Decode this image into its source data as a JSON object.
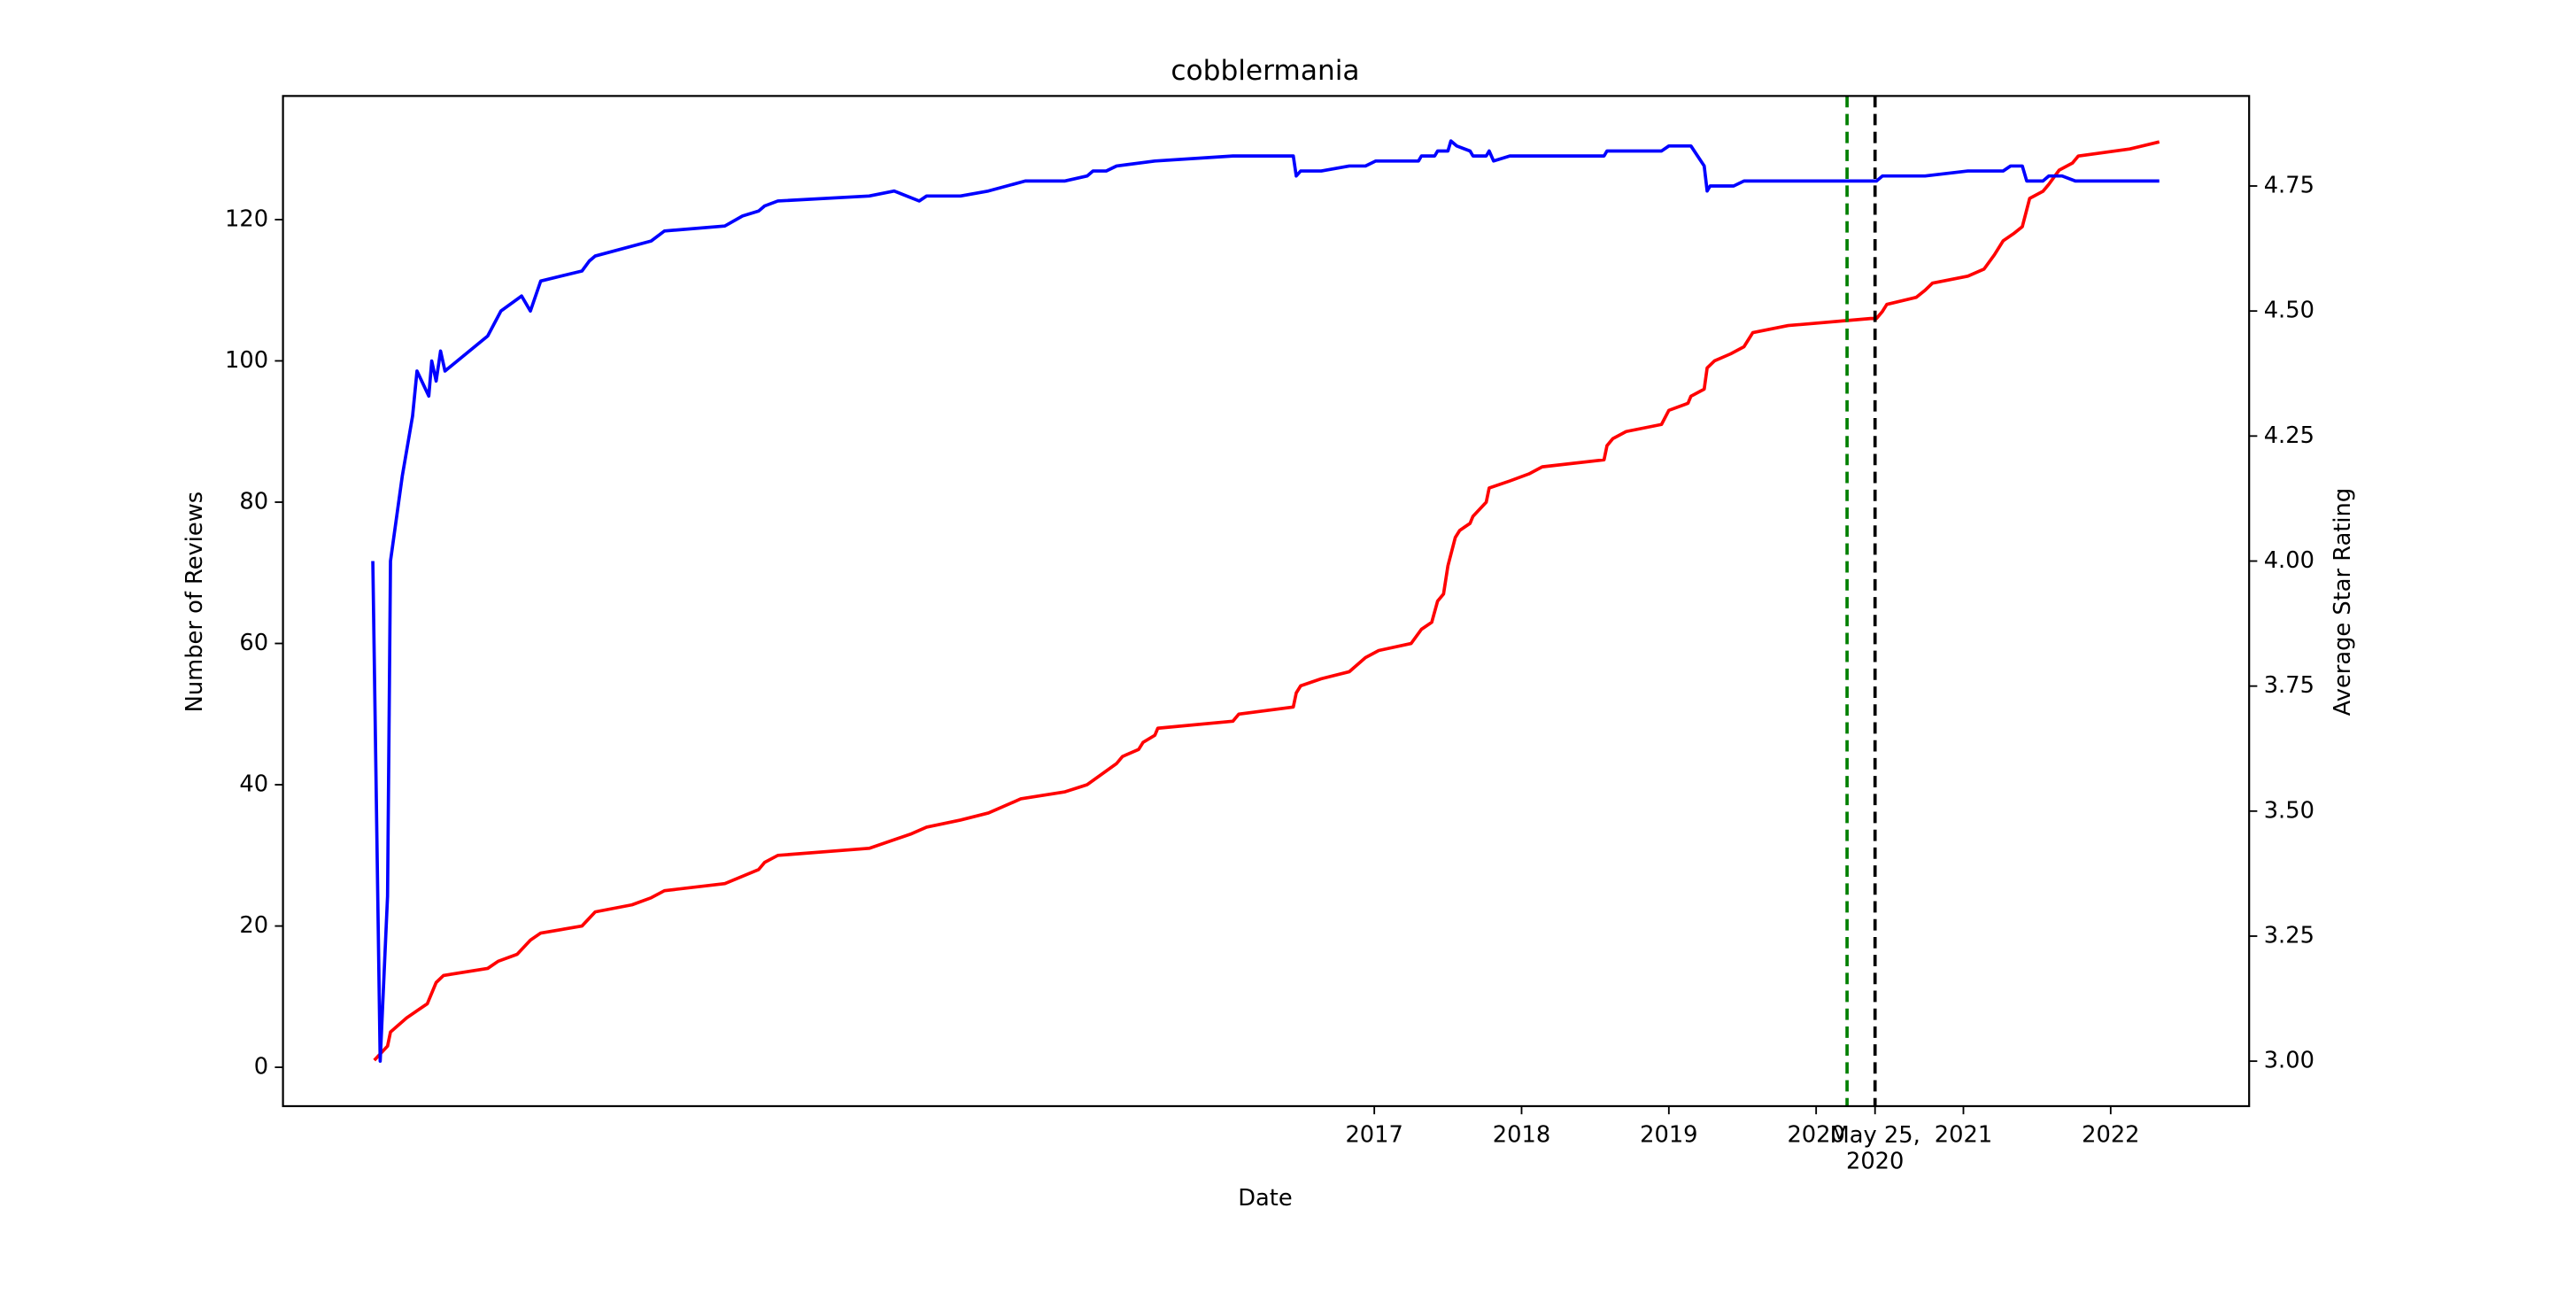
{
  "chart_data": {
    "type": "line",
    "title": "cobblermania",
    "xlabel": "Date",
    "ylabel": "Number of Reviews",
    "y2label": "Average Star Rating",
    "xlim": [
      2009.59,
      2022.94
    ],
    "ylim": [
      -5.5,
      137.5
    ],
    "y2lim": [
      2.91,
      4.93
    ],
    "xticks": [
      2017,
      2018,
      2019,
      2020,
      {
        "value": 2020.4,
        "label": "May 25,\n2020"
      },
      2021,
      2022
    ],
    "yticks": [
      0,
      20,
      40,
      60,
      80,
      100,
      120
    ],
    "y2ticks": [
      {
        "value": 3,
        "label": "3.00"
      },
      3.25,
      {
        "value": 3.5,
        "label": "3.50"
      },
      3.75,
      {
        "value": 4,
        "label": "4.00"
      },
      4.25,
      {
        "value": 4.5,
        "label": "4.50"
      },
      4.75
    ],
    "ylabel_color": "red",
    "y2label_color": "blue",
    "vlines": [
      {
        "x": 2020.21,
        "color": "green"
      },
      {
        "x": 2020.4,
        "color": "black"
      }
    ],
    "series": [
      {
        "name": "Number of Reviews",
        "color": "red",
        "axis": "y",
        "x": [
          2010.21,
          2010.3,
          2010.32,
          2010.43,
          2010.5,
          2010.57,
          2010.63,
          2010.68,
          2010.98,
          2011.05,
          2011.18,
          2011.27,
          2011.34,
          2011.62,
          2011.71,
          2011.96,
          2012.09,
          2012.18,
          2012.59,
          2012.82,
          2012.86,
          2012.95,
          2013.57,
          2013.85,
          2013.96,
          2014.19,
          2014.38,
          2014.6,
          2014.9,
          2015.05,
          2015.25,
          2015.29,
          2015.4,
          2015.43,
          2015.51,
          2015.53,
          2016.04,
          2016.08,
          2016.45,
          2016.47,
          2016.5,
          2016.64,
          2016.83,
          2016.94,
          2017.03,
          2017.25,
          2017.32,
          2017.39,
          2017.43,
          2017.47,
          2017.5,
          2017.55,
          2017.58,
          2017.65,
          2017.67,
          2017.76,
          2017.78,
          2017.92,
          2018.05,
          2018.14,
          2018.56,
          2018.58,
          2018.62,
          2018.71,
          2018.95,
          2019.0,
          2019.13,
          2019.15,
          2019.24,
          2019.26,
          2019.31,
          2019.42,
          2019.51,
          2019.57,
          2019.81,
          2020.37,
          2020.41,
          2020.45,
          2020.48,
          2020.68,
          2020.74,
          2020.79,
          2021.03,
          2021.14,
          2021.21,
          2021.27,
          2021.34,
          2021.4,
          2021.45,
          2021.54,
          2021.58,
          2021.65,
          2021.74,
          2021.78,
          2022.13,
          2022.33
        ],
        "values": [
          1,
          3,
          5,
          7,
          8,
          9,
          12,
          13,
          14,
          15,
          16,
          18,
          19,
          20,
          22,
          23,
          24,
          25,
          26,
          28,
          29,
          30,
          31,
          33,
          34,
          35,
          36,
          38,
          39,
          40,
          43,
          44,
          45,
          46,
          47,
          48,
          49,
          50,
          51,
          53,
          54,
          55,
          56,
          58,
          59,
          60,
          62,
          63,
          66,
          67,
          71,
          75,
          76,
          77,
          78,
          80,
          82,
          83,
          84,
          85,
          86,
          88,
          89,
          90,
          91,
          93,
          94,
          95,
          96,
          99,
          100,
          101,
          102,
          104,
          105,
          106,
          106,
          107,
          108,
          109,
          110,
          111,
          112,
          113,
          115,
          117,
          118,
          119,
          123,
          124,
          125,
          127,
          128,
          129,
          130,
          131
        ]
      },
      {
        "name": "Average Star Rating",
        "color": "blue",
        "axis": "y2",
        "x": [
          2010.2,
          2010.25,
          2010.3,
          2010.32,
          2010.4,
          2010.47,
          2010.5,
          2010.58,
          2010.6,
          2010.63,
          2010.66,
          2010.69,
          2010.98,
          2011.07,
          2011.21,
          2011.27,
          2011.34,
          2011.62,
          2011.67,
          2011.71,
          2012.09,
          2012.18,
          2012.59,
          2012.71,
          2012.82,
          2012.86,
          2012.95,
          2013.57,
          2013.74,
          2013.91,
          2013.96,
          2014.19,
          2014.38,
          2014.63,
          2014.9,
          2015.05,
          2015.09,
          2015.18,
          2015.25,
          2015.51,
          2016.04,
          2016.45,
          2016.47,
          2016.5,
          2016.64,
          2016.83,
          2016.94,
          2017.01,
          2017.3,
          2017.32,
          2017.41,
          2017.43,
          2017.5,
          2017.52,
          2017.56,
          2017.65,
          2017.67,
          2017.76,
          2017.78,
          2017.81,
          2017.92,
          2018.56,
          2018.58,
          2018.95,
          2019.0,
          2019.15,
          2019.24,
          2019.26,
          2019.28,
          2019.44,
          2019.51,
          2020.41,
          2020.45,
          2020.74,
          2021.03,
          2021.27,
          2021.32,
          2021.4,
          2021.43,
          2021.54,
          2021.58,
          2021.67,
          2021.76,
          2022.33
        ],
        "values": [
          4.0,
          3.0,
          3.33,
          4.0,
          4.17,
          4.29,
          4.38,
          4.33,
          4.4,
          4.36,
          4.42,
          4.38,
          4.45,
          4.5,
          4.53,
          4.5,
          4.56,
          4.58,
          4.6,
          4.61,
          4.64,
          4.66,
          4.67,
          4.69,
          4.7,
          4.71,
          4.72,
          4.73,
          4.74,
          4.72,
          4.73,
          4.73,
          4.74,
          4.76,
          4.76,
          4.77,
          4.78,
          4.78,
          4.79,
          4.8,
          4.81,
          4.81,
          4.77,
          4.78,
          4.78,
          4.79,
          4.79,
          4.8,
          4.8,
          4.81,
          4.81,
          4.82,
          4.82,
          4.84,
          4.83,
          4.82,
          4.81,
          4.81,
          4.82,
          4.8,
          4.81,
          4.81,
          4.82,
          4.82,
          4.83,
          4.83,
          4.79,
          4.74,
          4.75,
          4.75,
          4.76,
          4.76,
          4.77,
          4.77,
          4.78,
          4.78,
          4.79,
          4.79,
          4.76,
          4.76,
          4.77,
          4.77,
          4.76,
          4.76
        ]
      }
    ]
  }
}
